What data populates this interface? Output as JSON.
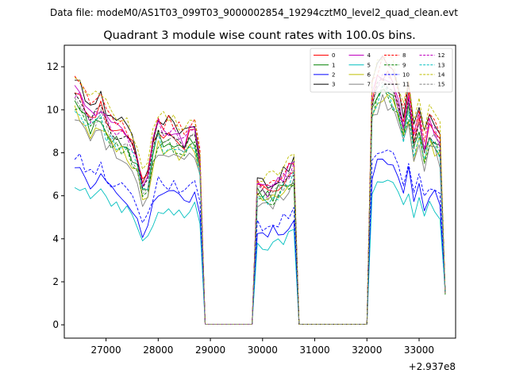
{
  "chart_data": {
    "type": "line",
    "suptitle": "Data file: modeM0/AS1T03_099T03_9000002854_19294cztM0_level2_quad_clean.evt",
    "title": "Quadrant 3 module wise count rates with 100.0s bins.",
    "xlabel": "",
    "ylabel": "",
    "offset_label": "+2.937e8",
    "xlim": [
      26200,
      33700
    ],
    "ylim": [
      -0.62,
      13.0
    ],
    "xticks": [
      27000,
      28000,
      29000,
      30000,
      31000,
      32000,
      33000
    ],
    "xtick_labels": [
      "27000",
      "28000",
      "29000",
      "30000",
      "31000",
      "32000",
      "33000"
    ],
    "yticks": [
      0,
      2,
      4,
      6,
      8,
      10,
      12
    ],
    "ytick_labels": [
      "0",
      "2",
      "4",
      "6",
      "8",
      "10",
      "12"
    ],
    "legend_position": "upper right",
    "legend_columns": 4,
    "grid": false,
    "segments": [
      {
        "start": 26400,
        "count": 25
      },
      {
        "start": 29900,
        "count": 8
      },
      {
        "start": 32100,
        "count": 15
      }
    ],
    "gap_value": 0.03,
    "series": [
      {
        "name": "0",
        "color": "#ff0000",
        "dash": false,
        "base": 9.4,
        "level": [
          0.98,
          0.72,
          1.0
        ],
        "seed": 1
      },
      {
        "name": "1",
        "color": "#008000",
        "dash": false,
        "base": 8.9,
        "level": [
          0.98,
          0.72,
          1.0
        ],
        "seed": 2
      },
      {
        "name": "2",
        "color": "#0000ff",
        "dash": false,
        "base": 6.3,
        "level": [
          0.98,
          0.72,
          1.0
        ],
        "seed": 3
      },
      {
        "name": "3",
        "color": "#000000",
        "dash": false,
        "base": 9.9,
        "level": [
          0.98,
          0.72,
          1.0
        ],
        "seed": 4
      },
      {
        "name": "4",
        "color": "#c000c0",
        "dash": false,
        "base": 9.5,
        "level": [
          0.98,
          0.72,
          1.0
        ],
        "seed": 5
      },
      {
        "name": "5",
        "color": "#00bfbf",
        "dash": false,
        "base": 5.6,
        "level": [
          0.98,
          0.72,
          1.0
        ],
        "seed": 6
      },
      {
        "name": "6",
        "color": "#bfbf00",
        "dash": false,
        "base": 8.6,
        "level": [
          0.98,
          0.72,
          1.0
        ],
        "seed": 7
      },
      {
        "name": "7",
        "color": "#808080",
        "dash": false,
        "base": 8.4,
        "level": [
          0.98,
          0.72,
          1.0
        ],
        "seed": 8
      },
      {
        "name": "8",
        "color": "#ff0000",
        "dash": true,
        "base": 9.9,
        "level": [
          0.98,
          0.72,
          1.0
        ],
        "seed": 9
      },
      {
        "name": "9",
        "color": "#008000",
        "dash": true,
        "base": 8.7,
        "level": [
          0.98,
          0.72,
          1.0
        ],
        "seed": 10
      },
      {
        "name": "10",
        "color": "#0000ff",
        "dash": true,
        "base": 6.7,
        "level": [
          0.98,
          0.72,
          1.0
        ],
        "seed": 11
      },
      {
        "name": "11",
        "color": "#000000",
        "dash": true,
        "base": 9.2,
        "level": [
          0.98,
          0.72,
          1.0
        ],
        "seed": 12
      },
      {
        "name": "12",
        "color": "#c000c0",
        "dash": true,
        "base": 9.4,
        "level": [
          0.98,
          0.72,
          1.0
        ],
        "seed": 13
      },
      {
        "name": "13",
        "color": "#00bfbf",
        "dash": true,
        "base": 8.8,
        "level": [
          0.98,
          0.72,
          1.0
        ],
        "seed": 14
      },
      {
        "name": "14",
        "color": "#bfbf00",
        "dash": true,
        "base": 10.2,
        "level": [
          0.98,
          0.72,
          1.0
        ],
        "seed": 15
      },
      {
        "name": "15",
        "color": "#808080",
        "dash": true,
        "base": 9.0,
        "level": [
          0.98,
          0.72,
          1.0
        ],
        "seed": 16
      }
    ],
    "shape": {
      "seg0": [
        1.18,
        1.16,
        1.1,
        1.05,
        1.08,
        1.1,
        1.03,
        1.0,
        0.98,
        0.96,
        0.95,
        0.9,
        0.82,
        0.7,
        0.74,
        0.9,
        1.0,
        0.96,
        0.98,
        0.97,
        0.94,
        0.92,
        0.96,
        0.98,
        0.82
      ],
      "seg1": [
        0.95,
        0.93,
        0.92,
        0.94,
        0.97,
        1.0,
        1.04,
        1.08
      ],
      "seg2": [
        1.12,
        1.2,
        1.24,
        1.22,
        1.18,
        1.1,
        1.0,
        1.12,
        0.92,
        1.02,
        0.88,
        0.98,
        0.95,
        0.9,
        0.86
      ]
    },
    "end_value": 1.5
  }
}
